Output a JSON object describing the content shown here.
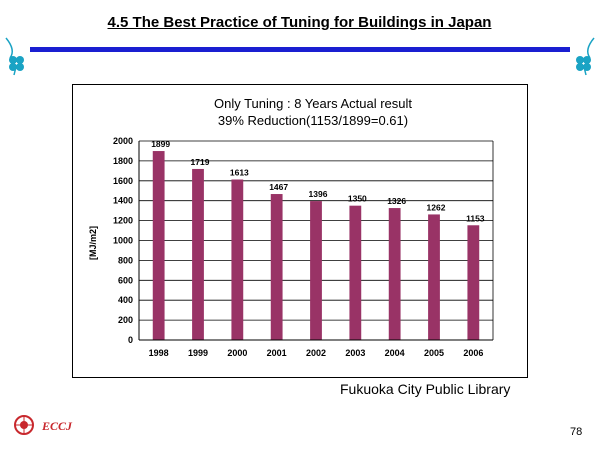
{
  "slide": {
    "title": "4.5  The Best Practice of Tuning for Buildings in Japan",
    "source": "Fukuoka City Public Library",
    "page_number": "78",
    "logo_text": "ECCJ"
  },
  "colors": {
    "bar": "#993366",
    "rule": "#1a1fd1",
    "decoration": "#1aa3c4",
    "logo": "#c8282d"
  },
  "chart_data": {
    "type": "bar",
    "title": "Only Tuning : 8 Years Actual result",
    "subtitle": "39% Reduction(1153/1899=0.61)",
    "ylabel": "[MJ/m2]",
    "xlabel": "",
    "categories": [
      "1998",
      "1999",
      "2000",
      "2001",
      "2002",
      "2003",
      "2004",
      "2005",
      "2006"
    ],
    "values": [
      1899,
      1719,
      1613,
      1467,
      1396,
      1350,
      1326,
      1262,
      1153
    ],
    "ylim": [
      0,
      2000
    ],
    "yticks": [
      0,
      200,
      400,
      600,
      800,
      1000,
      1200,
      1400,
      1600,
      1800,
      2000
    ],
    "grid": true,
    "data_labels": true,
    "legend": "none"
  }
}
